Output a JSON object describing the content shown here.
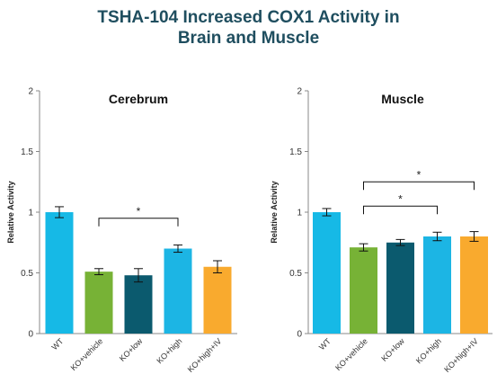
{
  "title_lines": [
    "TSHA-104 Increased COX1 Activity in",
    "Brain and Muscle"
  ],
  "colors": {
    "title": "#1f4e5f",
    "WT": "#16b9e6",
    "KO+vehicle": "#77b236",
    "KO+low": "#0b5a6e",
    "KO+high": "#1cb5e4",
    "KO+high+IV": "#f9aa2e"
  },
  "chart_data": [
    {
      "type": "bar",
      "title": "Cerebrum",
      "ylabel": "Relative Activity",
      "ylim": [
        0,
        2
      ],
      "yticks": [
        0,
        0.5,
        1,
        1.5,
        2
      ],
      "ytick_labels": [
        "0",
        "0.5",
        "1",
        "1.5",
        "2"
      ],
      "categories": [
        "WT",
        "KO+vehicle",
        "KO+low",
        "KO+high",
        "KO+high+IV"
      ],
      "values": [
        1.0,
        0.51,
        0.48,
        0.7,
        0.55
      ],
      "errors": [
        0.045,
        0.025,
        0.055,
        0.03,
        0.05
      ],
      "significance": [
        {
          "from": 1,
          "to": 3,
          "y": 0.95,
          "label": "*"
        }
      ]
    },
    {
      "type": "bar",
      "title": "Muscle",
      "ylabel": "Relative Activity",
      "ylim": [
        0,
        2
      ],
      "yticks": [
        0,
        0.5,
        1,
        1.5,
        2
      ],
      "ytick_labels": [
        "0",
        "0.5",
        "1",
        "1.5",
        "2"
      ],
      "categories": [
        "WT",
        "KO+vehicle",
        "KO+low",
        "KO+high",
        "KO+high+IV"
      ],
      "values": [
        1.0,
        0.71,
        0.75,
        0.8,
        0.8
      ],
      "errors": [
        0.03,
        0.03,
        0.025,
        0.035,
        0.04
      ],
      "significance": [
        {
          "from": 1,
          "to": 3,
          "y": 1.05,
          "label": "*"
        },
        {
          "from": 1,
          "to": 4,
          "y": 1.25,
          "label": "*"
        }
      ]
    }
  ]
}
